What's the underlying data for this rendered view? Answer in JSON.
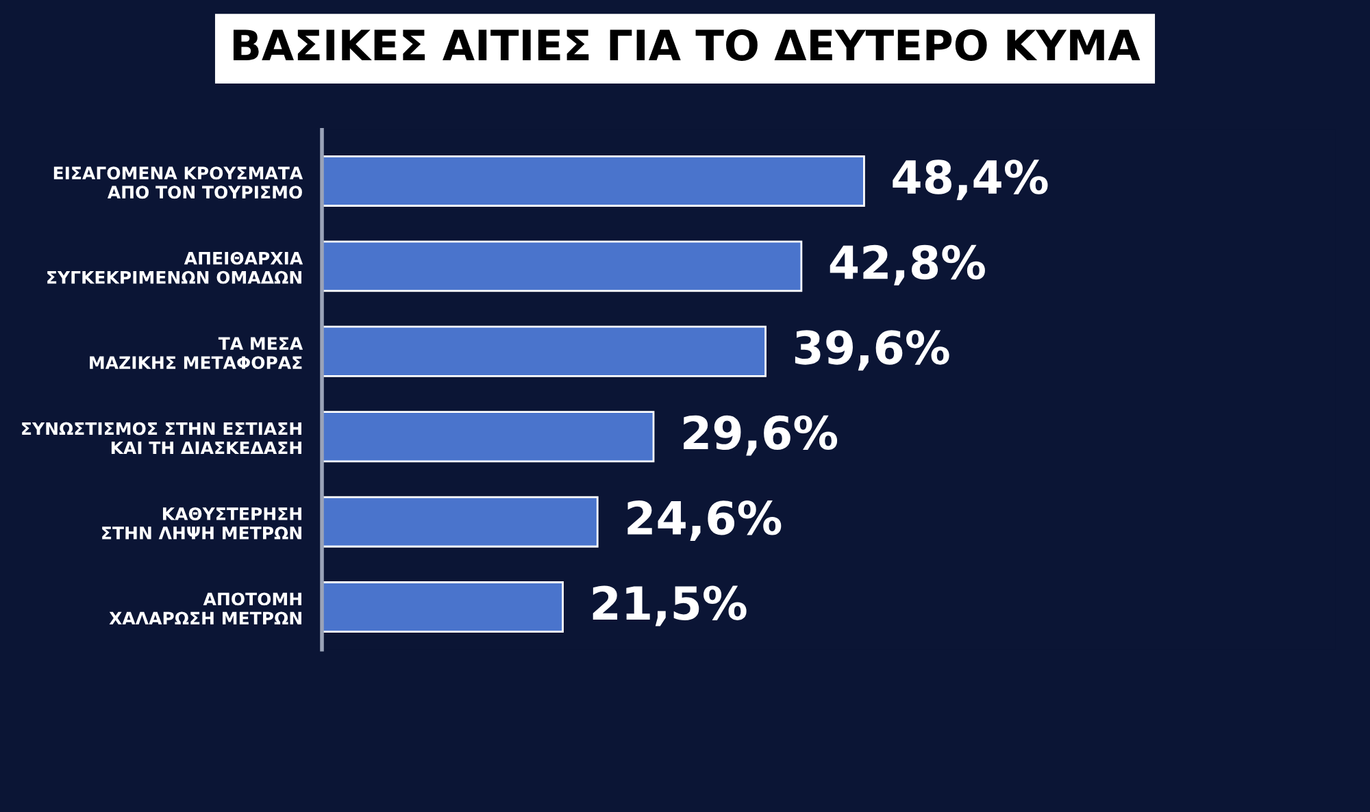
{
  "chart_data": {
    "type": "bar",
    "orientation": "horizontal",
    "title": "ΒΑΣΙΚΕΣ ΑΙΤΙΕΣ ΓΙΑ ΤΟ ΔΕΥΤΕΡΟ ΚΥΜΑ",
    "categories": [
      "ΕΙΣΑΓΟΜΕΝΑ ΚΡΟΥΣΜΑΤΑ\nΑΠΟ ΤΟΝ ΤΟΥΡΙΣΜΟ",
      "ΑΠΕΙΘΑΡΧΙΑ\nΣΥΓΚΕΚΡΙΜΕΝΩΝ ΟΜΑΔΩΝ",
      "ΤΑ ΜΕΣΑ\nΜΑΖΙΚΗΣ ΜΕΤΑΦΟΡΑΣ",
      "ΣΥΝΩΣΤΙΣΜΟΣ ΣΤΗΝ ΕΣΤΙΑΣΗ\nΚΑΙ ΤΗ ΔΙΑΣΚΕΔΑΣΗ",
      "ΚΑΘΥΣΤΕΡΗΣΗ\nΣΤΗΝ ΛΗΨΗ ΜΕΤΡΩΝ",
      "ΑΠΟΤΟΜΗ\nΧΑΛΑΡΩΣΗ ΜΕΤΡΩΝ"
    ],
    "values": [
      48.4,
      42.8,
      39.6,
      29.6,
      24.6,
      21.5
    ],
    "value_labels": [
      "48,4%",
      "42,8%",
      "39,6%",
      "29,6%",
      "24,6%",
      "21,5%"
    ],
    "color": "#4a74cc"
  }
}
